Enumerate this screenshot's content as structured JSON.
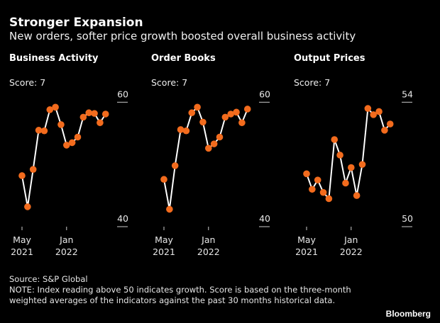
{
  "header": {
    "title": "Stronger Expansion",
    "subtitle": "New orders, softer price growth boosted overall business activity"
  },
  "footer": {
    "source": "Source: S&P Global",
    "note": "NOTE: Index reading above 50 indicates growth. Score is based on the three-month weighted averages of the indicators against the past 30 months historical data.",
    "brand": "Bloomberg"
  },
  "colors": {
    "background": "#000000",
    "line": "#ffffff",
    "marker": "#f26b1d"
  },
  "chart_data": [
    {
      "type": "line",
      "title": "Business Activity",
      "score": "Score: 7",
      "x": [
        "2021-05",
        "2021-06",
        "2021-07",
        "2021-08",
        "2021-09",
        "2021-10",
        "2021-11",
        "2021-12",
        "2022-01",
        "2022-02",
        "2022-03",
        "2022-04",
        "2022-05",
        "2022-06",
        "2022-07",
        "2022-08"
      ],
      "values": [
        48.2,
        43.2,
        49.2,
        55.5,
        55.4,
        58.8,
        59.2,
        56.4,
        53.1,
        53.5,
        54.4,
        57.6,
        58.3,
        58.2,
        56.7,
        58.1
      ],
      "ylim": [
        40,
        60
      ],
      "yticks": [
        "40",
        "60"
      ],
      "xticks": [
        {
          "month": "May",
          "year": "2021"
        },
        {
          "month": "Jan",
          "year": "2022"
        }
      ],
      "grid": false
    },
    {
      "type": "line",
      "title": "Order Books",
      "score": "Score: 7",
      "x": [
        "2021-05",
        "2021-06",
        "2021-07",
        "2021-08",
        "2021-09",
        "2021-10",
        "2021-11",
        "2021-12",
        "2022-01",
        "2022-02",
        "2022-03",
        "2022-04",
        "2022-05",
        "2022-06",
        "2022-07",
        "2022-08"
      ],
      "values": [
        47.6,
        42.8,
        49.8,
        55.6,
        55.4,
        58.3,
        59.2,
        56.8,
        52.6,
        53.3,
        54.4,
        57.6,
        58.1,
        58.4,
        56.7,
        58.9
      ],
      "ylim": [
        40,
        60
      ],
      "yticks": [
        "40",
        "60"
      ],
      "xticks": [
        {
          "month": "May",
          "year": "2021"
        },
        {
          "month": "Jan",
          "year": "2022"
        }
      ],
      "grid": false
    },
    {
      "type": "line",
      "title": "Output Prices",
      "score": "Score: 7",
      "x": [
        "2021-05",
        "2021-06",
        "2021-07",
        "2021-08",
        "2021-09",
        "2021-10",
        "2021-11",
        "2021-12",
        "2022-01",
        "2022-02",
        "2022-03",
        "2022-04",
        "2022-05",
        "2022-06",
        "2022-07",
        "2022-08"
      ],
      "values": [
        51.7,
        51.2,
        51.5,
        51.1,
        50.9,
        52.8,
        52.3,
        51.4,
        51.9,
        51.0,
        52.0,
        53.8,
        53.6,
        53.7,
        53.1,
        53.3
      ],
      "ylim": [
        50,
        54
      ],
      "yticks": [
        "50",
        "54"
      ],
      "xticks": [
        {
          "month": "May",
          "year": "2021"
        },
        {
          "month": "Jan",
          "year": "2022"
        }
      ],
      "grid": false
    }
  ]
}
